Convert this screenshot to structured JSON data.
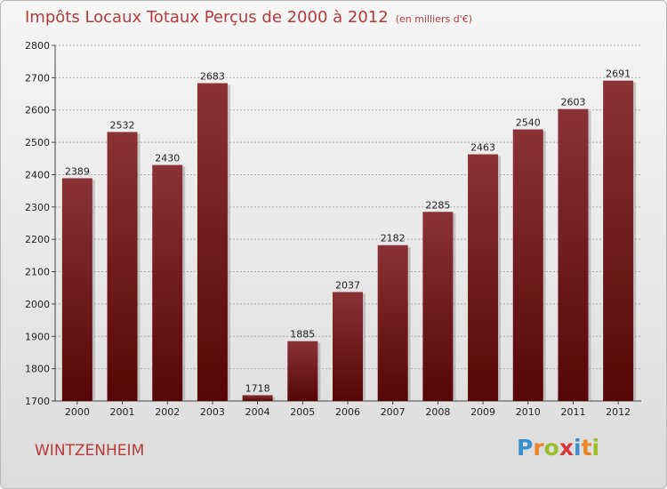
{
  "chart_data": {
    "type": "bar",
    "title": "Impôts Locaux Totaux Perçus de 2000 à 2012",
    "subtitle": "(en milliers d'€)",
    "categories": [
      "2000",
      "2001",
      "2002",
      "2003",
      "2004",
      "2005",
      "2006",
      "2007",
      "2008",
      "2009",
      "2010",
      "2011",
      "2012"
    ],
    "values": [
      2389,
      2532,
      2430,
      2683,
      1718,
      1885,
      2037,
      2182,
      2285,
      2463,
      2540,
      2603,
      2691
    ],
    "ylim": [
      1700,
      2800
    ],
    "yticks": [
      1700,
      1800,
      1900,
      2000,
      2100,
      2200,
      2300,
      2400,
      2500,
      2600,
      2700,
      2800
    ],
    "grid": true,
    "bar_color": "#7a1e22",
    "xlabel": "",
    "ylabel": ""
  },
  "place_name": "WINTZENHEIM",
  "logo": {
    "letters": [
      {
        "ch": "P",
        "color": "#3a8fd0"
      },
      {
        "ch": "r",
        "color": "#e8862a"
      },
      {
        "ch": "o",
        "color": "#9bbf2a"
      },
      {
        "ch": "x",
        "color": "#d23a3a"
      },
      {
        "ch": "i",
        "color": "#3a8fd0"
      },
      {
        "ch": "t",
        "color": "#e8862a"
      },
      {
        "ch": "i",
        "color": "#9bbf2a"
      }
    ]
  }
}
